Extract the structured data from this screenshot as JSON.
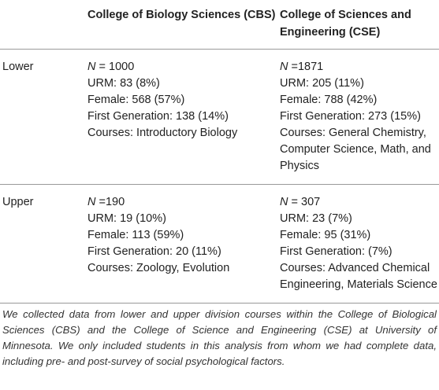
{
  "table": {
    "header": [
      "College of Biology Sciences (CBS)",
      "College of Sciences and Engineering (CSE)"
    ],
    "rows": [
      {
        "label": "Lower",
        "cells": [
          {
            "n_symbol": "N",
            "n_value": "= 1000",
            "lines": [
              "URM: 83 (8%)",
              "Female: 568 (57%)",
              "First Generation: 138 (14%)",
              "Courses: Introductory Biology"
            ]
          },
          {
            "n_symbol": "N",
            "n_value": "=1871",
            "lines": [
              "URM: 205 (11%)",
              "Female: 788 (42%)",
              "First Generation: 273 (15%)",
              "Courses: General Chemistry, Computer Science, Math, and Physics"
            ]
          }
        ]
      },
      {
        "label": "Upper",
        "cells": [
          {
            "n_symbol": "N",
            "n_value": "=190",
            "lines": [
              "URM: 19 (10%)",
              "Female: 113 (59%)",
              "First Generation: 20 (11%)",
              "Courses: Zoology, Evolution"
            ]
          },
          {
            "n_symbol": "N",
            "n_value": "= 307",
            "lines": [
              "URM: 23 (7%)",
              "Female: 95 (31%)",
              "First Generation: (7%)",
              "Courses: Advanced Chemical Engineering, Materials Science"
            ]
          }
        ]
      }
    ]
  },
  "footnote": "We collected data from lower and upper division courses within the College of Biological Sciences (CBS) and the College of Science and Engineering (CSE) at University of Minnesota. We only included students in this analysis from whom we had complete data, including pre- and post-survey of social psychological factors."
}
